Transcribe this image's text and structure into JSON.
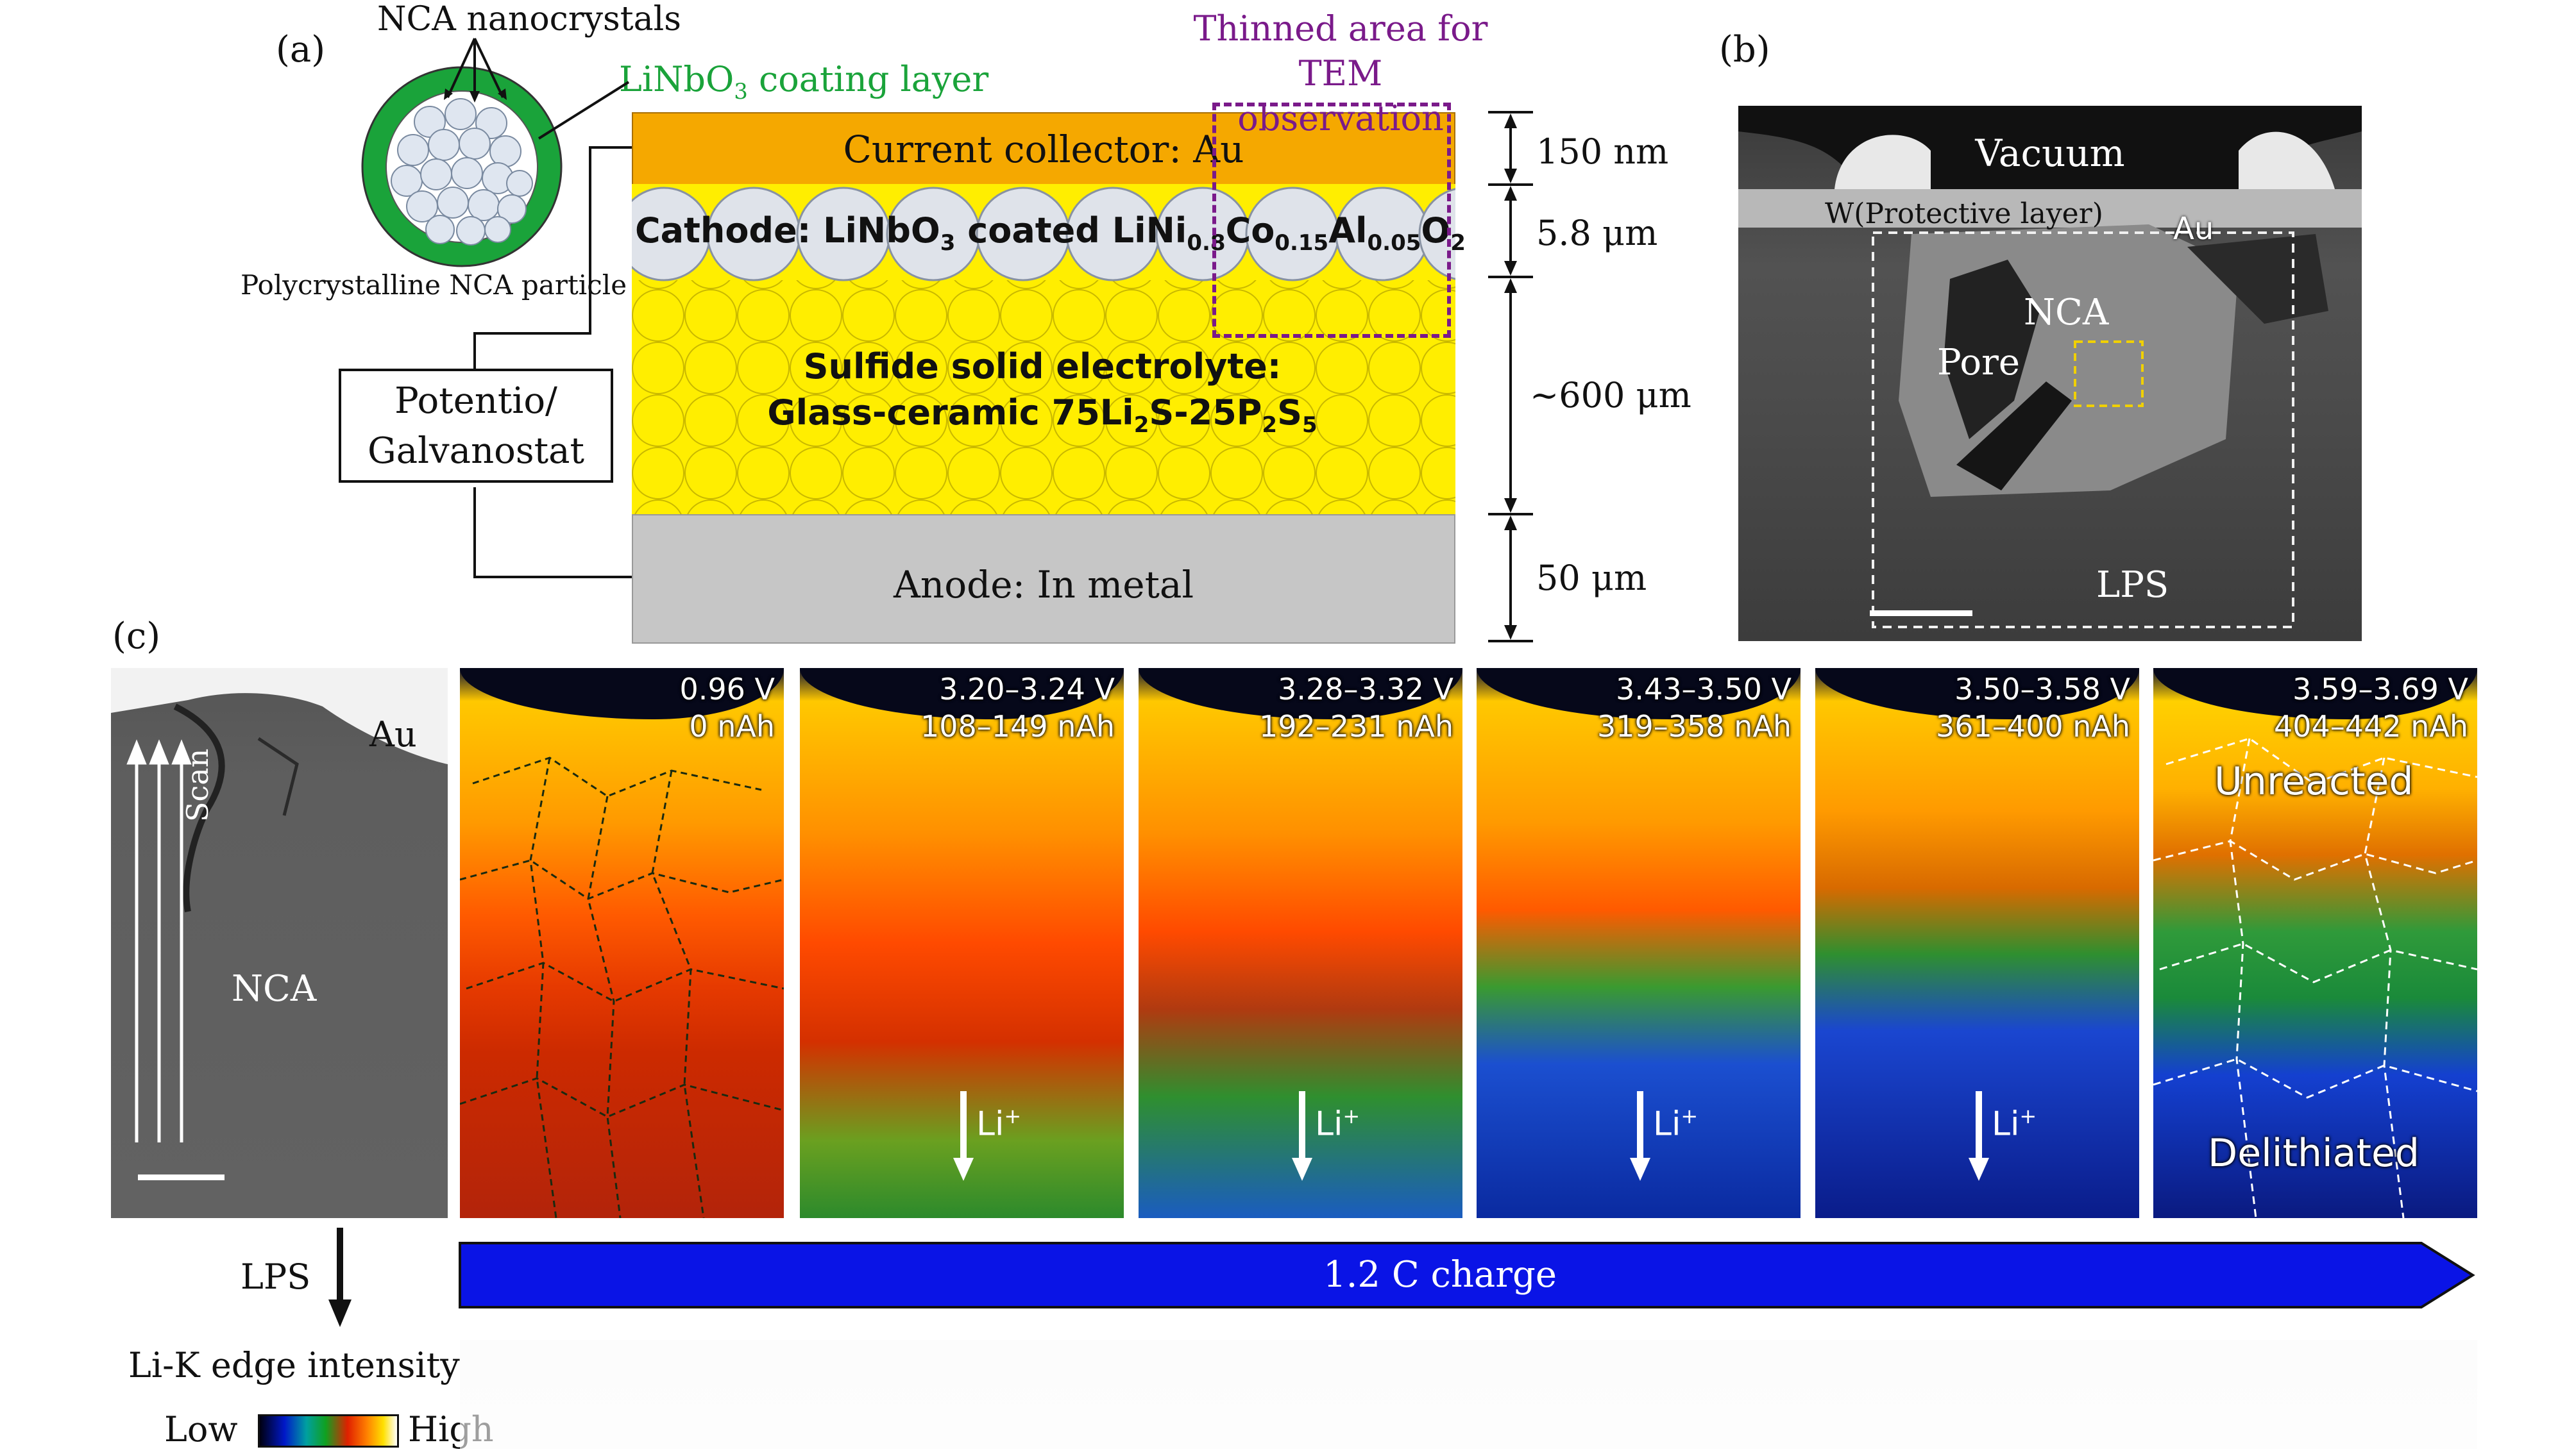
{
  "panel_labels": {
    "a": "(a)",
    "b": "(b)",
    "c": "(c)"
  },
  "panel_a": {
    "nca_nanocrystals": "NCA nanocrystals",
    "coating_layer": "LiNbO",
    "coating_layer_sub": "3",
    "coating_layer_rest": " coating layer",
    "polycrystalline": "Polycrystalline NCA particle",
    "thinned_area_line1": "Thinned area for",
    "thinned_area_line2": "TEM observation",
    "current_collector": "Current collector: Au",
    "cathode": {
      "t1": "Cathode: LiNbO",
      "s1": "3",
      "t2": " coated LiNi",
      "s2": "0.8",
      "t3": "Co",
      "s3": "0.15",
      "t4": "Al",
      "s4": "0.05",
      "t5": "O",
      "s5": "2"
    },
    "electrolyte_line1": "Sulfide solid electrolyte:",
    "electrolyte_line2": {
      "t1": "Glass-ceramic 75Li",
      "s1": "2",
      "t2": "S-25P",
      "s2": "2",
      "t3": "S",
      "s3": "5"
    },
    "anode": "Anode: In metal",
    "potentiostat_line1": "Potentio/",
    "potentiostat_line2": "Galvanostat",
    "dims": {
      "d1": "150 nm",
      "d2": "5.8 μm",
      "d3": "~600 μm",
      "d4": "50 μm"
    }
  },
  "panel_b": {
    "vacuum": "Vacuum",
    "w_layer": "W(Protective layer)",
    "au": "Au",
    "nca": "NCA",
    "pore": "Pore",
    "lps": "LPS"
  },
  "panel_c": {
    "au": "Au",
    "scan": "Scan",
    "nca": "NCA",
    "lps": "LPS",
    "charge": "1.2 C charge",
    "li_label": "Li",
    "li_sup": "+",
    "unreacted": "Unreacted",
    "delithiated": "Delithiated",
    "legend_title": "Li-K edge intensity",
    "legend_low": "Low",
    "legend_high": "High",
    "maps": [
      {
        "v": "0.96 V",
        "q": "0 nAh"
      },
      {
        "v": "3.20–3.24 V",
        "q": "108–149 nAh"
      },
      {
        "v": "3.28–3.32 V",
        "q": "192–231 nAh"
      },
      {
        "v": "3.43–3.50 V",
        "q": "319–358 nAh"
      },
      {
        "v": "3.50–3.58 V",
        "q": "361–400 nAh"
      },
      {
        "v": "3.59–3.69 V",
        "q": "404–442 nAh"
      }
    ]
  },
  "colors": {
    "current_collector": "#f5a800",
    "electrolyte": "#ffee00",
    "anode": "#c6c6c6",
    "coating_green": "#1aa33a",
    "thinned_purple": "#7a1a8a",
    "charge_blue": "#0a14e6"
  }
}
